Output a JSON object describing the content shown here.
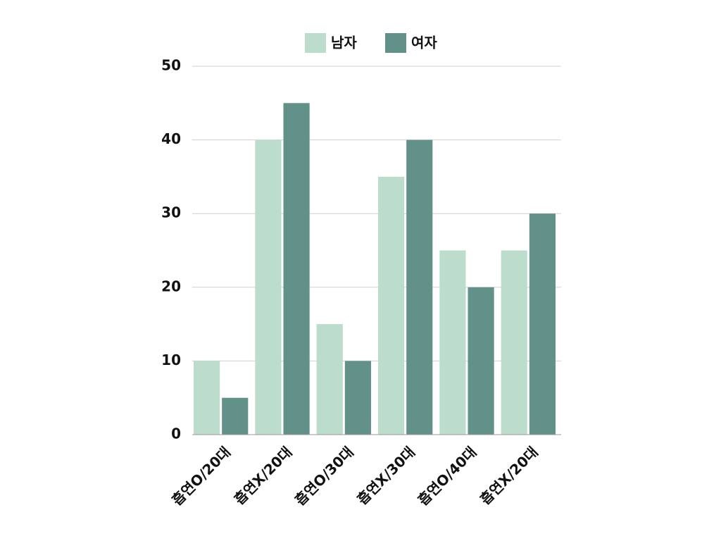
{
  "chart_data": {
    "type": "bar",
    "categories": [
      "흡연O/20대",
      "흡연X/20대",
      "흡연O/30대",
      "흡연X/30대",
      "흡연O/40대",
      "흡연X/20대"
    ],
    "series": [
      {
        "name": "남자",
        "color": "#bcdccc",
        "values": [
          10,
          40,
          15,
          35,
          25,
          25
        ]
      },
      {
        "name": "여자",
        "color": "#62918a",
        "values": [
          5,
          45,
          10,
          40,
          20,
          30
        ]
      }
    ],
    "ylim": [
      0,
      50
    ],
    "yticks": [
      0,
      10,
      20,
      30,
      40,
      50
    ],
    "grid": true,
    "legend": "top"
  }
}
